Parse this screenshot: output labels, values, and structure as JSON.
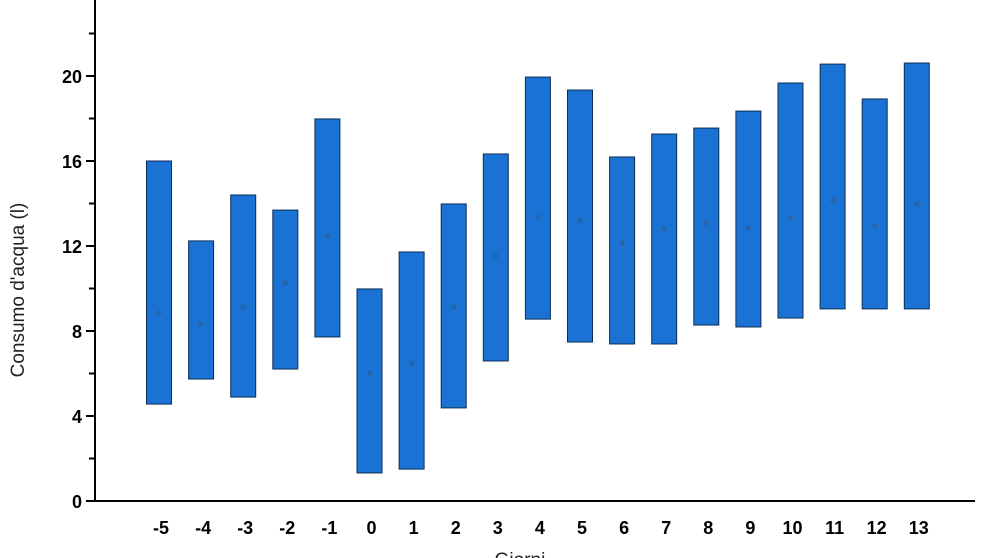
{
  "chart_data": {
    "type": "bar",
    "subtype": "floating-range-with-mean",
    "title": "",
    "xlabel": "Giorni",
    "ylabel": "Consumo d'acqua (l)",
    "ylim": [
      0,
      23.6
    ],
    "yticks": [
      0,
      4,
      8,
      12,
      16,
      20
    ],
    "yminor_step": 2,
    "grid": false,
    "bar_color": "#1a73d4",
    "categories": [
      "-5",
      "-4",
      "-3",
      "-2",
      "-1",
      "0",
      "1",
      "2",
      "3",
      "4",
      "5",
      "6",
      "7",
      "8",
      "9",
      "10",
      "11",
      "12",
      "13"
    ],
    "series": [
      {
        "low": [
          4.56,
          5.74,
          4.89,
          6.21,
          7.72,
          1.32,
          1.5,
          4.38,
          6.59,
          8.56,
          7.48,
          7.39,
          7.39,
          8.28,
          8.19,
          8.61,
          9.04,
          9.04,
          9.04
        ]
      },
      {
        "high": [
          16.0,
          12.24,
          14.4,
          13.69,
          17.98,
          9.98,
          11.72,
          13.98,
          16.33,
          19.95,
          19.34,
          16.19,
          17.27,
          17.55,
          18.35,
          19.67,
          20.56,
          18.92,
          20.61
        ]
      },
      {
        "mean": [
          8.85,
          8.33,
          9.13,
          10.26,
          12.47,
          6.02,
          6.49,
          9.13,
          11.53,
          13.36,
          13.18,
          12.14,
          12.8,
          13.08,
          12.85,
          13.32,
          14.16,
          12.94,
          13.98
        ]
      }
    ]
  }
}
